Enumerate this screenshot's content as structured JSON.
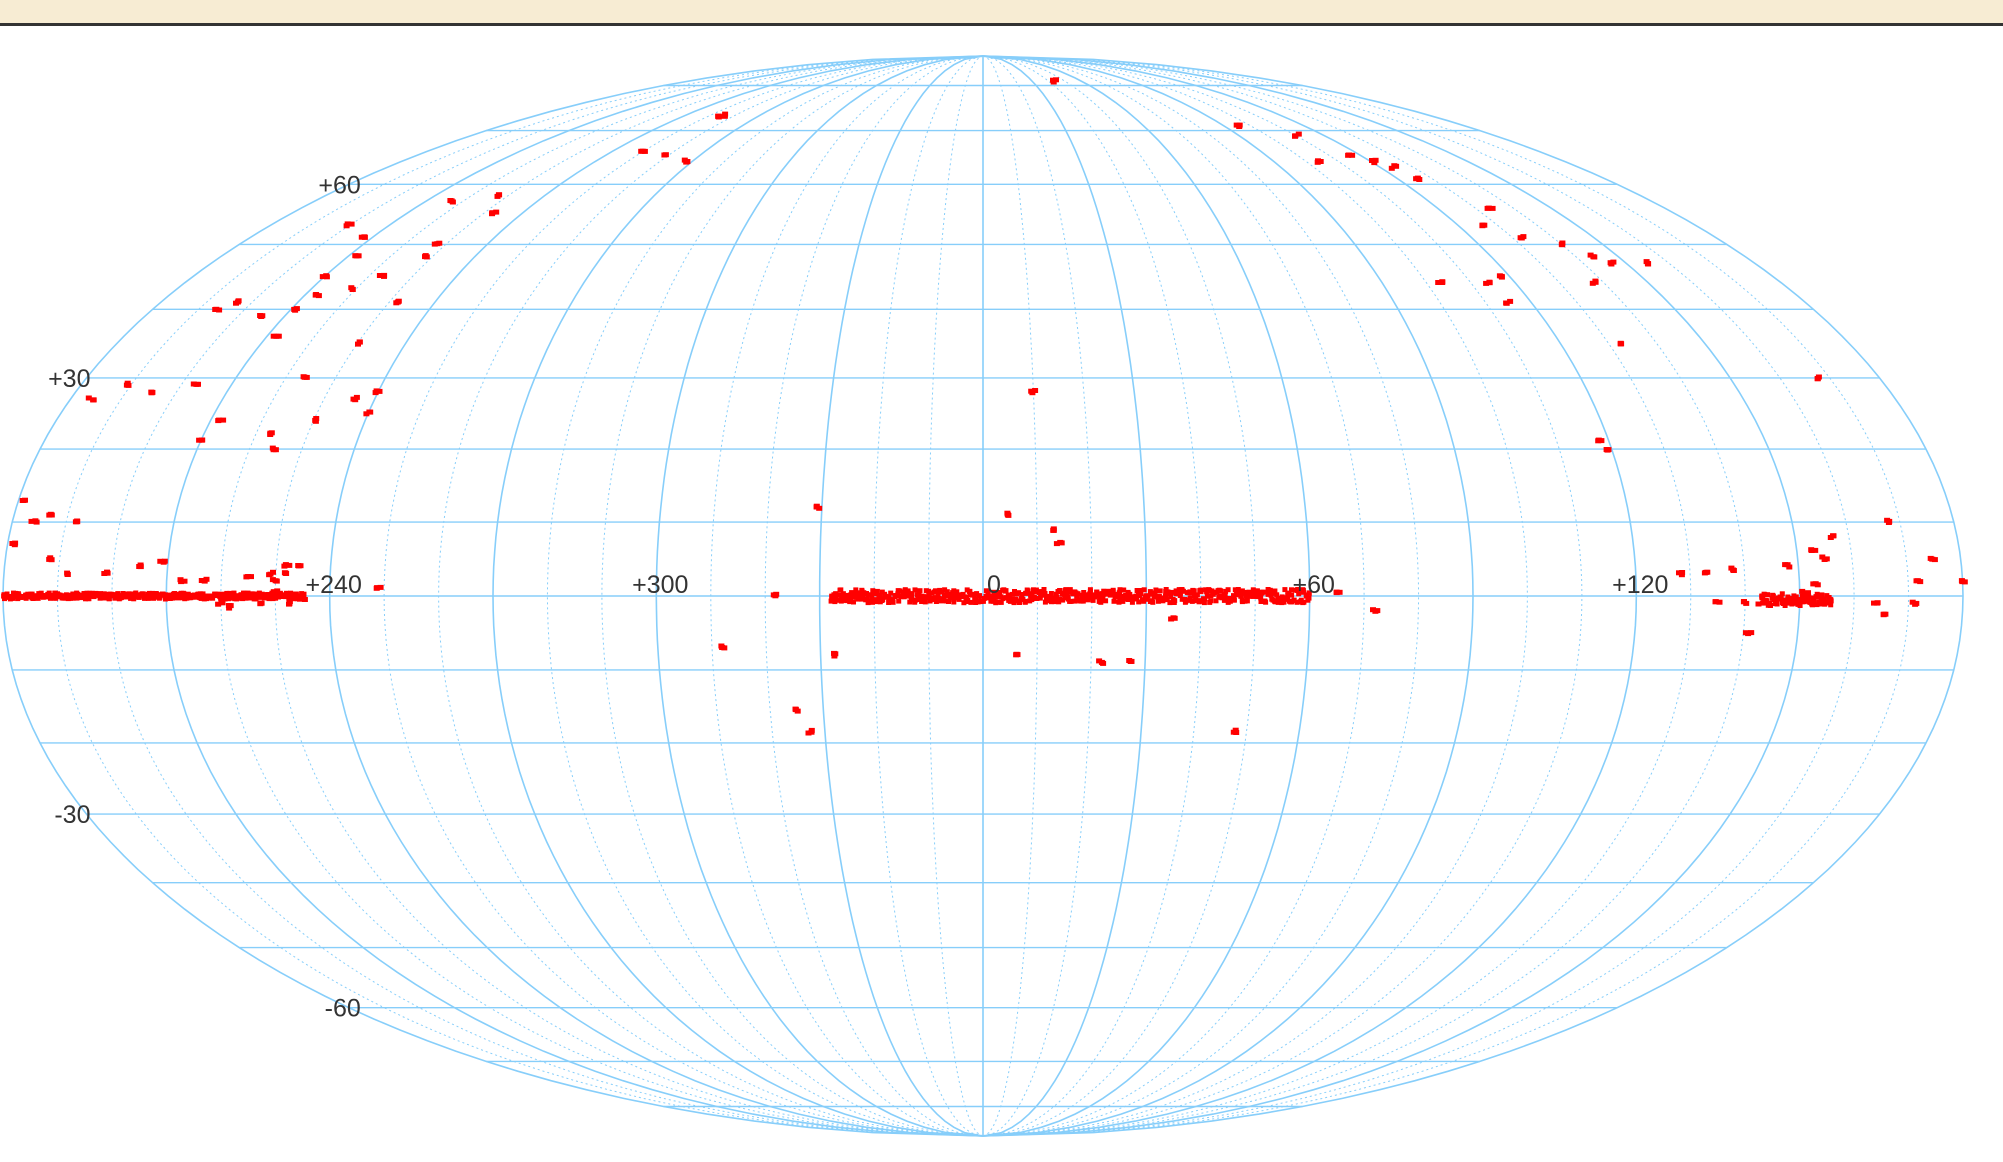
{
  "colors": {
    "topbar": "#f7ecd3",
    "grid": "#87cefa",
    "points": "#ff0000",
    "labels": "#333333"
  },
  "chart_data": {
    "type": "scatter",
    "projection": "mollweide",
    "grid": true,
    "lon_center": 0,
    "meridians_major_deg": [
      -180,
      -150,
      -120,
      -90,
      -60,
      -30,
      0,
      30,
      60,
      90,
      120,
      150,
      180
    ],
    "meridians_minor_deg": [
      -170,
      -160,
      -140,
      -130,
      -110,
      -100,
      -80,
      -70,
      -50,
      -40,
      -20,
      -10,
      10,
      20,
      40,
      50,
      70,
      80,
      100,
      110,
      130,
      140,
      160,
      170
    ],
    "parallels_deg": [
      -80,
      -70,
      -60,
      -50,
      -40,
      -30,
      -20,
      -10,
      0,
      10,
      20,
      30,
      40,
      50,
      60,
      70,
      80
    ],
    "lon_labels": [
      {
        "text": "+240",
        "lon": -120,
        "lat": 0
      },
      {
        "text": "+300",
        "lon": -60,
        "lat": 0
      },
      {
        "text": "0",
        "lon": 0,
        "lat": 0
      },
      {
        "text": "+60",
        "lon": 60,
        "lat": 0
      },
      {
        "text": "+120",
        "lon": 120,
        "lat": 0
      }
    ],
    "lat_labels": [
      {
        "text": "+60",
        "lat": 60
      },
      {
        "text": "+30",
        "lat": 30
      },
      {
        "text": "-30",
        "lat": -30
      },
      {
        "text": "-60",
        "lat": -60
      }
    ],
    "band_segments": [
      {
        "lon_start": -28,
        "lon_end": 60,
        "lat": 0,
        "spread": 0.9
      },
      {
        "lon_start": -180,
        "lon_end": -125,
        "lat": 0,
        "spread": 0.4
      },
      {
        "lon_start": 143,
        "lon_end": 156,
        "lat": -0.5,
        "spread": 0.8
      }
    ],
    "points": [
      {
        "lon": 10,
        "lat": 28
      },
      {
        "lon": 5,
        "lat": 11
      },
      {
        "lon": 13,
        "lat": 9
      },
      {
        "lon": 14,
        "lat": 7
      },
      {
        "lon": -31,
        "lat": 12
      },
      {
        "lon": 6,
        "lat": -8
      },
      {
        "lon": 22,
        "lat": -9
      },
      {
        "lon": 27,
        "lat": -9
      },
      {
        "lon": 35,
        "lat": -3
      },
      {
        "lon": -48,
        "lat": -7
      },
      {
        "lon": -27,
        "lat": -8
      },
      {
        "lon": -35,
        "lat": -15.5
      },
      {
        "lon": -33,
        "lat": -18.5
      },
      {
        "lon": 48,
        "lat": -18.5
      },
      {
        "lon": -38,
        "lat": 0
      },
      {
        "lon": 65,
        "lat": 0.5
      },
      {
        "lon": 72,
        "lat": -2
      },
      {
        "lon": 43,
        "lat": 81
      },
      {
        "lon": 95,
        "lat": 71
      },
      {
        "lon": 104,
        "lat": 64
      },
      {
        "lon": 110,
        "lat": 69
      },
      {
        "lon": 116,
        "lat": 65
      },
      {
        "lon": 121,
        "lat": 64
      },
      {
        "lon": 124,
        "lat": 63
      },
      {
        "lon": 126,
        "lat": 61
      },
      {
        "lon": 126,
        "lat": 53
      },
      {
        "lon": 134,
        "lat": 56
      },
      {
        "lon": 132,
        "lat": 51
      },
      {
        "lon": 155,
        "lat": 47
      },
      {
        "lon": 140,
        "lat": 50
      },
      {
        "lon": 144,
        "lat": 48
      },
      {
        "lon": 147,
        "lat": 47
      },
      {
        "lon": 103,
        "lat": 44
      },
      {
        "lon": 114,
        "lat": 44
      },
      {
        "lon": 118,
        "lat": 45
      },
      {
        "lon": 115,
        "lat": 41
      },
      {
        "lon": 138,
        "lat": 44
      },
      {
        "lon": 133,
        "lat": 35
      },
      {
        "lon": 168,
        "lat": 30
      },
      {
        "lon": 118,
        "lat": 21
      },
      {
        "lon": 119,
        "lat": 20
      },
      {
        "lon": 168,
        "lat": 10
      },
      {
        "lon": 153,
        "lat": 6
      },
      {
        "lon": 155,
        "lat": 5
      },
      {
        "lon": 148,
        "lat": 4
      },
      {
        "lon": 153,
        "lat": 1.5
      },
      {
        "lon": 151,
        "lat": 0.5
      },
      {
        "lon": 128,
        "lat": 3
      },
      {
        "lon": 133,
        "lat": 3
      },
      {
        "lon": 138,
        "lat": 3.5
      },
      {
        "lon": 172,
        "lat": 2
      },
      {
        "lon": 171,
        "lat": -1
      },
      {
        "lon": 164,
        "lat": -1
      },
      {
        "lon": 166,
        "lat": -2.5
      },
      {
        "lon": 140,
        "lat": -1
      },
      {
        "lon": 135,
        "lat": -1
      },
      {
        "lon": 143,
        "lat": -1
      },
      {
        "lon": 157,
        "lat": 8
      },
      {
        "lon": 175,
        "lat": 5
      },
      {
        "lon": 180,
        "lat": 2
      },
      {
        "lon": 141,
        "lat": -5
      },
      {
        "lon": -143,
        "lat": 57
      },
      {
        "lon": -133,
        "lat": 58
      },
      {
        "lon": -127,
        "lat": 55
      },
      {
        "lon": -106,
        "lat": 73
      },
      {
        "lon": -103,
        "lat": 73
      },
      {
        "lon": -110,
        "lat": 66
      },
      {
        "lon": -100,
        "lat": 65
      },
      {
        "lon": -92,
        "lat": 64
      },
      {
        "lon": -160,
        "lat": 53
      },
      {
        "lon": -152,
        "lat": 51
      },
      {
        "lon": -148,
        "lat": 48
      },
      {
        "lon": -132,
        "lat": 50
      },
      {
        "lon": -131,
        "lat": 48
      },
      {
        "lon": -150,
        "lat": 45
      },
      {
        "lon": -137,
        "lat": 45
      },
      {
        "lon": -141,
        "lat": 43
      },
      {
        "lon": -147,
        "lat": 42
      },
      {
        "lon": -163,
        "lat": 41
      },
      {
        "lon": -166,
        "lat": 40
      },
      {
        "lon": -155,
        "lat": 39
      },
      {
        "lon": -149,
        "lat": 40
      },
      {
        "lon": -148,
        "lat": 36
      },
      {
        "lon": -128,
        "lat": 41
      },
      {
        "lon": -130,
        "lat": 35
      },
      {
        "lon": -136,
        "lat": 30
      },
      {
        "lon": -120,
        "lat": 28
      },
      {
        "lon": -124,
        "lat": 27
      },
      {
        "lon": -120,
        "lat": 25
      },
      {
        "lon": -130,
        "lat": 24
      },
      {
        "lon": -171,
        "lat": 29
      },
      {
        "lon": -176,
        "lat": 27
      },
      {
        "lon": -165,
        "lat": 28
      },
      {
        "lon": -157,
        "lat": 29
      },
      {
        "lon": -148,
        "lat": 24
      },
      {
        "lon": -135,
        "lat": 20
      },
      {
        "lon": -137,
        "lat": 22
      },
      {
        "lon": -150,
        "lat": 21
      },
      {
        "lon": -179,
        "lat": 13
      },
      {
        "lon": -173,
        "lat": 11
      },
      {
        "lon": -168,
        "lat": 10
      },
      {
        "lon": -176,
        "lat": 10
      },
      {
        "lon": -172,
        "lat": 5
      },
      {
        "lon": -168,
        "lat": 3
      },
      {
        "lon": -161,
        "lat": 3
      },
      {
        "lon": -155,
        "lat": 4
      },
      {
        "lon": -151,
        "lat": 4.5
      },
      {
        "lon": -147,
        "lat": 2
      },
      {
        "lon": -143,
        "lat": 2
      },
      {
        "lon": -135,
        "lat": 2.5
      },
      {
        "lon": -131,
        "lat": 3
      },
      {
        "lon": -128,
        "lat": 3
      },
      {
        "lon": -126,
        "lat": 4
      },
      {
        "lon": -128,
        "lat": 4
      },
      {
        "lon": -130,
        "lat": 2
      },
      {
        "lon": -130,
        "lat": 0.5
      },
      {
        "lon": -127,
        "lat": -1
      },
      {
        "lon": -133,
        "lat": -1
      },
      {
        "lon": -140,
        "lat": -1
      },
      {
        "lon": -138,
        "lat": -1.5
      },
      {
        "lon": -125,
        "lat": -0.5
      },
      {
        "lon": -111,
        "lat": 1
      },
      {
        "lon": -179,
        "lat": 7
      }
    ]
  }
}
